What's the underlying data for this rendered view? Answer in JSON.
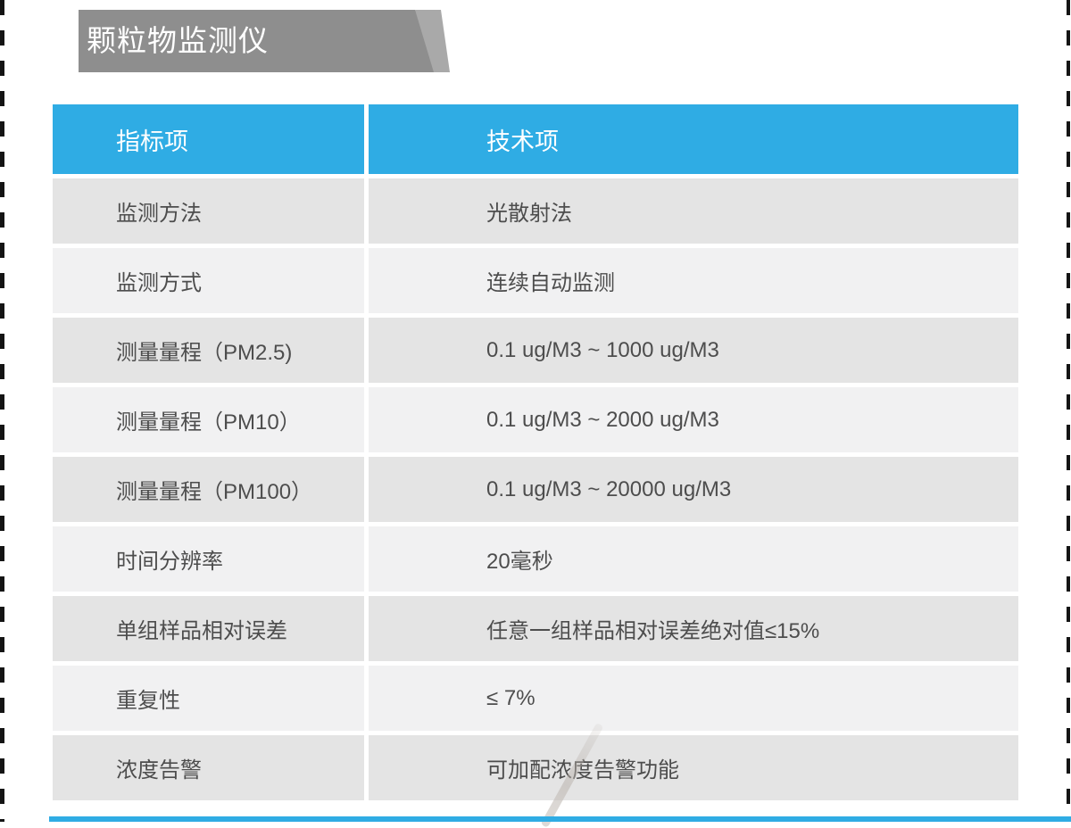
{
  "banner": {
    "title": "颗粒物监测仪"
  },
  "table": {
    "headers": [
      "指标项",
      "技术项"
    ],
    "rows": [
      {
        "label": "监测方法",
        "value": "光散射法"
      },
      {
        "label": "监测方式",
        "value": "连续自动监测"
      },
      {
        "label": "测量量程（PM2.5)",
        "value": "0.1 ug/M3 ~ 1000 ug/M3"
      },
      {
        "label": "测量量程（PM10）",
        "value": "0.1 ug/M3 ~ 2000 ug/M3"
      },
      {
        "label": "测量量程（PM100）",
        "value": "0.1 ug/M3 ~ 20000 ug/M3"
      },
      {
        "label": "时间分辨率",
        "value": "20毫秒"
      },
      {
        "label": "单组样品相对误差",
        "value": "任意一组样品相对误差绝对值≤15%"
      },
      {
        "label": "重复性",
        "value": "≤ 7%"
      },
      {
        "label": "浓度告警",
        "value": "可加配浓度告警功能"
      }
    ]
  },
  "colors": {
    "accent_blue": "#2FACE4",
    "banner_gray": "#8E8E8E",
    "banner_fold_gray": "#A9A9A9",
    "row_dark": "#E4E4E4",
    "row_light": "#F1F1F2",
    "text_gray": "#4D4D4D",
    "edge_dash_black": "#141414"
  }
}
